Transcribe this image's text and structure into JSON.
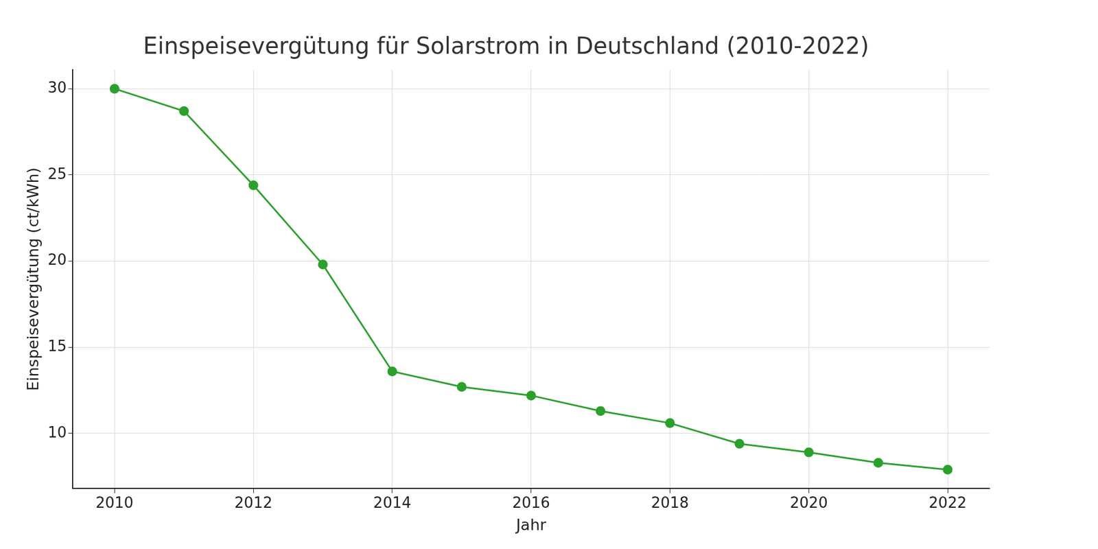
{
  "chart_data": {
    "type": "line",
    "title": "Einspeisevergütung für Solarstrom in Deutschland (2010-2022)",
    "x_label": "Jahr",
    "y_label": "Einspeisevergütung (ct/kWh)",
    "x": [
      2010,
      2011,
      2012,
      2013,
      2014,
      2015,
      2016,
      2017,
      2018,
      2019,
      2020,
      2021,
      2022
    ],
    "values": [
      30.0,
      28.7,
      24.4,
      19.8,
      13.6,
      12.7,
      12.2,
      11.3,
      10.6,
      9.4,
      8.9,
      8.3,
      7.9
    ],
    "color": "#2ca02c",
    "marker": "circle",
    "line_style": "solid",
    "xlim": [
      2009.4,
      2022.6
    ],
    "xticks": [
      2010,
      2012,
      2014,
      2016,
      2018,
      2020,
      2022
    ],
    "ylim": [
      6.8,
      31.1
    ],
    "yticks": [
      10,
      15,
      20,
      25,
      30
    ],
    "grid": true
  }
}
